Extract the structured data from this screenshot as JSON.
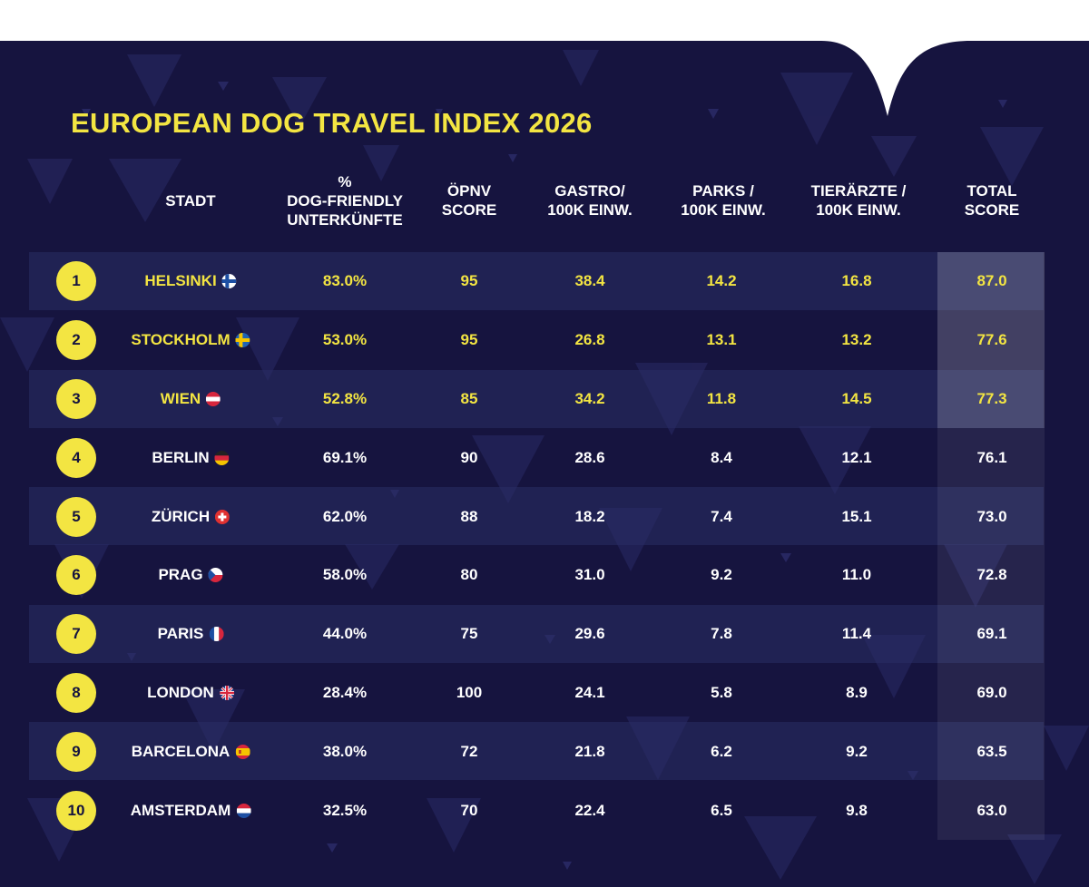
{
  "title": "EUROPEAN DOG TRAVEL INDEX 2026",
  "colors": {
    "background": "#16143f",
    "accent": "#f3e542",
    "text": "#ffffff",
    "rank_circle_text": "#16143f"
  },
  "chart_data": {
    "type": "table",
    "title": "EUROPEAN DOG TRAVEL INDEX 2026",
    "columns": [
      "STADT",
      "%\nDOG-FRIENDLY\nUNTERKÜNFTE",
      "ÖPNV\nSCORE",
      "GASTRO/\n100K EINW.",
      "PARKS /\n100K EINW.",
      "TIERÄRZTE /\n100K EINW.",
      "TOTAL\nSCORE"
    ],
    "highlighted_ranks": [
      1,
      2,
      3
    ],
    "rows": [
      {
        "rank": "1",
        "city": "HELSINKI",
        "flag": "finland-flag-icon",
        "dog_friendly": "83.0%",
        "opnv": "95",
        "gastro": "38.4",
        "parks": "14.2",
        "vets": "16.8",
        "total": "87.0"
      },
      {
        "rank": "2",
        "city": "STOCKHOLM",
        "flag": "sweden-flag-icon",
        "dog_friendly": "53.0%",
        "opnv": "95",
        "gastro": "26.8",
        "parks": "13.1",
        "vets": "13.2",
        "total": "77.6"
      },
      {
        "rank": "3",
        "city": "WIEN",
        "flag": "austria-flag-icon",
        "dog_friendly": "52.8%",
        "opnv": "85",
        "gastro": "34.2",
        "parks": "11.8",
        "vets": "14.5",
        "total": "77.3"
      },
      {
        "rank": "4",
        "city": "BERLIN",
        "flag": "germany-flag-icon",
        "dog_friendly": "69.1%",
        "opnv": "90",
        "gastro": "28.6",
        "parks": "8.4",
        "vets": "12.1",
        "total": "76.1"
      },
      {
        "rank": "5",
        "city": "ZÜRICH",
        "flag": "switzerland-flag-icon",
        "dog_friendly": "62.0%",
        "opnv": "88",
        "gastro": "18.2",
        "parks": "7.4",
        "vets": "15.1",
        "total": "73.0"
      },
      {
        "rank": "6",
        "city": "PRAG",
        "flag": "czechia-flag-icon",
        "dog_friendly": "58.0%",
        "opnv": "80",
        "gastro": "31.0",
        "parks": "9.2",
        "vets": "11.0",
        "total": "72.8"
      },
      {
        "rank": "7",
        "city": "PARIS",
        "flag": "france-flag-icon",
        "dog_friendly": "44.0%",
        "opnv": "75",
        "gastro": "29.6",
        "parks": "7.8",
        "vets": "11.4",
        "total": "69.1"
      },
      {
        "rank": "8",
        "city": "LONDON",
        "flag": "uk-flag-icon",
        "dog_friendly": "28.4%",
        "opnv": "100",
        "gastro": "24.1",
        "parks": "5.8",
        "vets": "8.9",
        "total": "69.0"
      },
      {
        "rank": "9",
        "city": "BARCELONA",
        "flag": "spain-flag-icon",
        "dog_friendly": "38.0%",
        "opnv": "72",
        "gastro": "21.8",
        "parks": "6.2",
        "vets": "9.2",
        "total": "63.5"
      },
      {
        "rank": "10",
        "city": "AMSTERDAM",
        "flag": "netherlands-flag-icon",
        "dog_friendly": "32.5%",
        "opnv": "70",
        "gastro": "22.4",
        "parks": "6.5",
        "vets": "9.8",
        "total": "63.0"
      }
    ]
  }
}
